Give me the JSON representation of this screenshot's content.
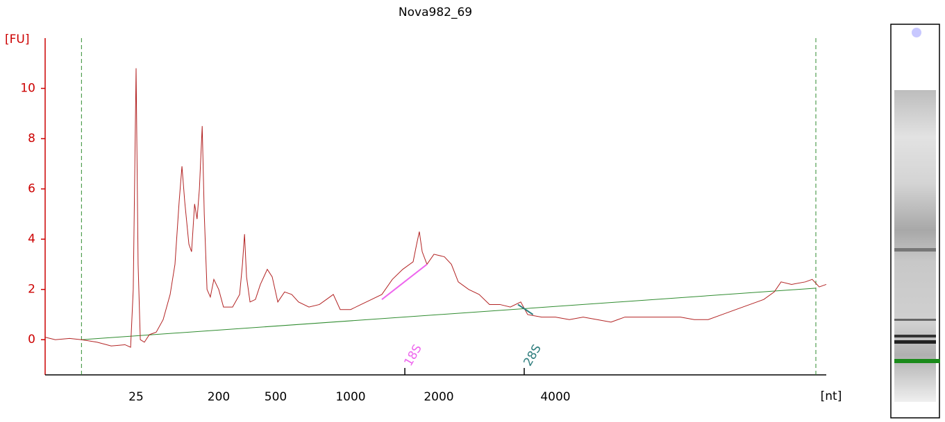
{
  "chart_data": {
    "type": "line",
    "title": "Nova982_69",
    "y_label": "[FU]",
    "x_label": "[nt]",
    "x_scale": "ladder",
    "xlim": [
      3,
      20000
    ],
    "xticks": [
      25,
      200,
      500,
      1000,
      2000,
      4000
    ],
    "ylim": [
      -1.4,
      12
    ],
    "yticks": [
      0,
      2,
      4,
      6,
      8,
      10
    ],
    "color": "#b22222",
    "x": [
      3,
      3.8,
      5.3,
      7.0,
      10.1,
      14,
      19.3,
      22,
      23.4,
      25,
      26.3,
      27.8,
      30.8,
      34.9,
      41.5,
      49.4,
      58.9,
      66.5,
      73.9,
      79.3,
      85,
      94.4,
      101,
      109,
      116,
      123,
      132,
      139,
      149,
      162,
      177,
      200,
      216,
      250,
      280,
      293,
      303,
      313,
      331,
      361,
      391,
      437,
      473,
      510,
      543,
      580,
      618,
      680,
      749,
      799,
      852,
      908,
      1000,
      1085,
      1178,
      1278,
      1388,
      1506,
      1634,
      1680,
      1716,
      1755,
      1822,
      1925,
      2067,
      2155,
      2245,
      2388,
      2541,
      2703,
      2876,
      3059,
      3254,
      3391,
      3684,
      4000,
      4345,
      4717,
      5125,
      5564,
      6042,
      6562,
      7125,
      7740,
      8406,
      9128,
      9914,
      10770,
      11690,
      12700,
      13790,
      14680,
      15290,
      16270,
      17660,
      18400,
      19180,
      20000
    ],
    "values": [
      0.1,
      0,
      0.05,
      0,
      -0.1,
      -0.25,
      -0.2,
      -0.3,
      2,
      10.8,
      3,
      0,
      -0.1,
      0.2,
      0.3,
      0.8,
      1.8,
      3,
      5.5,
      6.9,
      5.5,
      3.8,
      3.5,
      5.4,
      4.8,
      6,
      8.5,
      5,
      2,
      1.7,
      2.4,
      2,
      1.3,
      1.3,
      1.8,
      3,
      4.2,
      2.5,
      1.5,
      1.6,
      2.2,
      2.8,
      2.5,
      1.5,
      1.9,
      1.8,
      1.5,
      1.3,
      1.4,
      1.6,
      1.8,
      1.2,
      1.2,
      1.4,
      1.6,
      1.8,
      2.4,
      2.8,
      3.1,
      3.8,
      4.3,
      3.5,
      3,
      3.4,
      3.3,
      3,
      2.3,
      2,
      1.8,
      1.4,
      1.4,
      1.3,
      1.5,
      1,
      0.9,
      0.9,
      0.8,
      0.9,
      0.8,
      0.7,
      0.9,
      0.9,
      0.9,
      0.9,
      0.9,
      0.8,
      0.8,
      1.0,
      1.2,
      1.4,
      1.6,
      1.9,
      2.3,
      2.2,
      2.3,
      2.4,
      2.1,
      2.2
    ],
    "baseline": {
      "color": "#2e8b2e",
      "x": [
        7.0,
        18800
      ],
      "values": [
        0,
        2.05
      ]
    },
    "range_lines": {
      "color": "#2e8b2e",
      "x": [
        7.0,
        18800
      ]
    },
    "fragments": [
      {
        "label": "18S",
        "color": "#ee66ee",
        "x": 1531,
        "area_x": [
          1278,
          1822
        ],
        "area_values": [
          1.6,
          3.0
        ]
      },
      {
        "label": "28S",
        "color": "#2e7d7d",
        "x": 3322,
        "area_x": [
          3200,
          3500
        ],
        "area_values": [
          1.4,
          1.0
        ]
      }
    ]
  }
}
